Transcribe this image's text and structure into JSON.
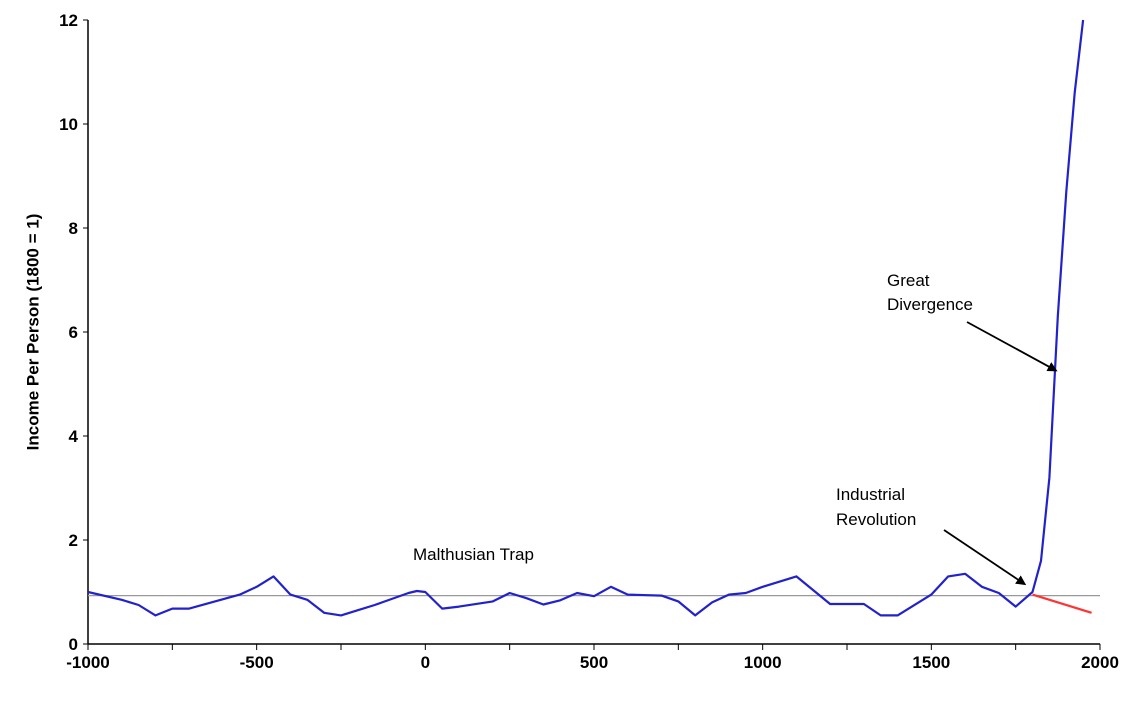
{
  "chart_data": {
    "type": "line",
    "title": "",
    "xlabel": "",
    "ylabel": "Income Per Person (1800 = 1)",
    "xlim": [
      -1000,
      2000
    ],
    "ylim": [
      0,
      12
    ],
    "x_ticks": [
      "-1000",
      "-500",
      "0",
      "500",
      "1000",
      "1500",
      "2000"
    ],
    "y_ticks": [
      "0",
      "2",
      "4",
      "6",
      "8",
      "10",
      "12"
    ],
    "grid": false,
    "legend": "none",
    "series": [
      {
        "color": "#2222cc",
        "points": [
          [
            -1000,
            1.0
          ],
          [
            -900,
            0.85
          ],
          [
            -850,
            0.75
          ],
          [
            -800,
            0.55
          ],
          [
            -750,
            0.68
          ],
          [
            -700,
            0.68
          ],
          [
            -550,
            0.95
          ],
          [
            -500,
            1.1
          ],
          [
            -450,
            1.3
          ],
          [
            -400,
            0.95
          ],
          [
            -350,
            0.85
          ],
          [
            -300,
            0.6
          ],
          [
            -250,
            0.55
          ],
          [
            -200,
            0.65
          ],
          [
            -150,
            0.75
          ],
          [
            -50,
            0.98
          ],
          [
            -25,
            1.02
          ],
          [
            0,
            1.0
          ],
          [
            50,
            0.68
          ],
          [
            100,
            0.72
          ],
          [
            200,
            0.82
          ],
          [
            250,
            0.98
          ],
          [
            300,
            0.88
          ],
          [
            350,
            0.76
          ],
          [
            400,
            0.84
          ],
          [
            450,
            0.98
          ],
          [
            500,
            0.92
          ],
          [
            550,
            1.1
          ],
          [
            600,
            0.95
          ],
          [
            700,
            0.93
          ],
          [
            750,
            0.82
          ],
          [
            800,
            0.55
          ],
          [
            850,
            0.8
          ],
          [
            900,
            0.95
          ],
          [
            950,
            0.98
          ],
          [
            1000,
            1.1
          ],
          [
            1100,
            1.3
          ],
          [
            1200,
            0.77
          ],
          [
            1300,
            0.77
          ],
          [
            1350,
            0.55
          ],
          [
            1400,
            0.55
          ],
          [
            1500,
            0.95
          ],
          [
            1550,
            1.3
          ],
          [
            1600,
            1.35
          ],
          [
            1650,
            1.1
          ],
          [
            1700,
            0.98
          ],
          [
            1750,
            0.72
          ],
          [
            1800,
            1.0
          ],
          [
            1825,
            1.6
          ],
          [
            1850,
            3.2
          ],
          [
            1875,
            6.3
          ],
          [
            1900,
            8.7
          ],
          [
            1925,
            10.6
          ],
          [
            1950,
            12.0
          ]
        ]
      },
      {
        "color": "#ff3333",
        "points": [
          [
            1800,
            0.95
          ],
          [
            1975,
            0.6
          ]
        ]
      }
    ],
    "reference_lines": [
      {
        "y": 0.93,
        "color": "#999999"
      }
    ],
    "annotations": [
      {
        "text": "Malthusian Trap"
      },
      {
        "text": "Industrial",
        "text2": "Revolution",
        "arrow_to": [
          1800,
          1.0
        ]
      },
      {
        "text": "Great",
        "text2": "Divergence",
        "arrow_to": [
          1875,
          5.3
        ]
      }
    ]
  }
}
